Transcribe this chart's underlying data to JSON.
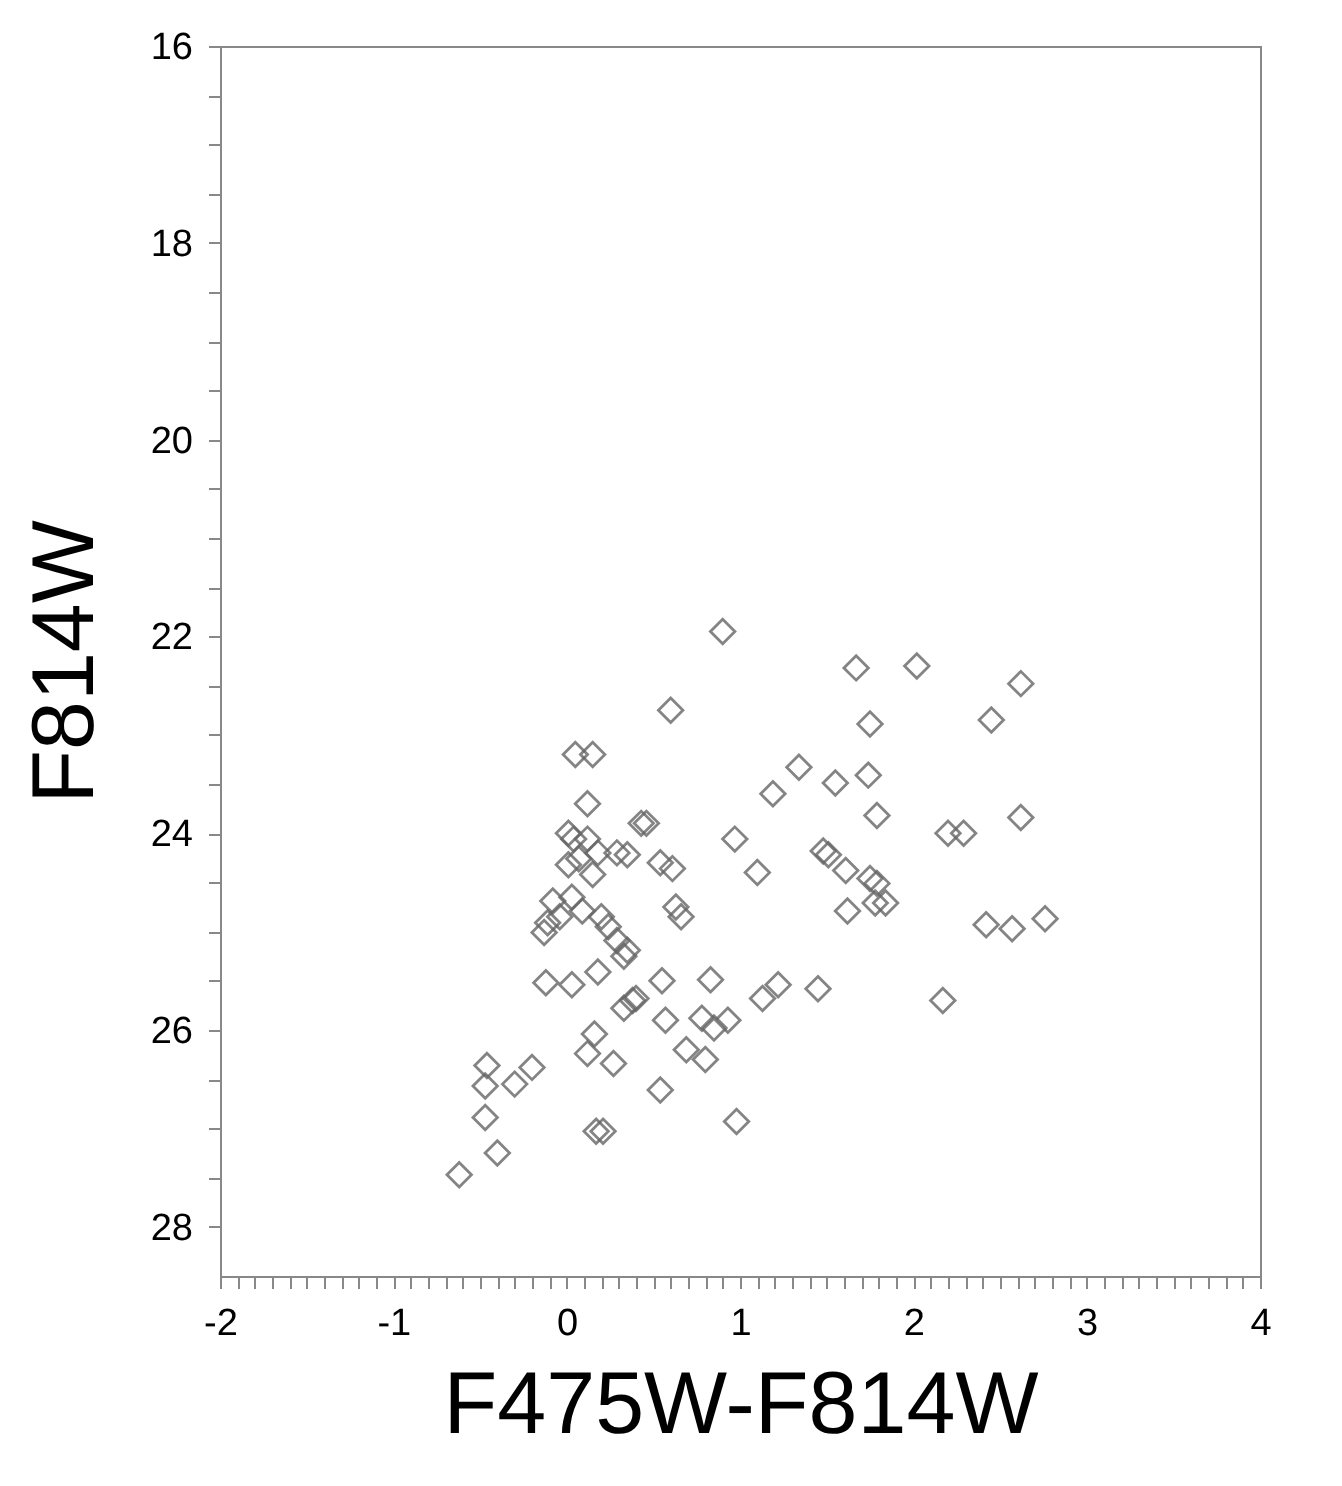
{
  "chart_data": {
    "type": "scatter",
    "xlabel": "F475W-F814W",
    "ylabel": "F814W",
    "marker": "diamond",
    "grid": false,
    "xlim": [
      -2,
      4
    ],
    "ylim": [
      28.5,
      16
    ],
    "xticks": [
      -2,
      {
        "value": -1.9,
        "label": null
      },
      {
        "value": -1.8,
        "label": null
      },
      {
        "value": -1.7,
        "label": null
      },
      {
        "value": -1.6,
        "label": null
      },
      {
        "value": -1.5,
        "label": null
      },
      {
        "value": -1.4,
        "label": null
      },
      {
        "value": -1.3,
        "label": null
      },
      {
        "value": -1.2,
        "label": null
      },
      {
        "value": -1.1,
        "label": null
      },
      -1,
      {
        "value": -0.9,
        "label": null
      },
      {
        "value": -0.8,
        "label": null
      },
      {
        "value": -0.7,
        "label": null
      },
      {
        "value": -0.6,
        "label": null
      },
      {
        "value": -0.5,
        "label": null
      },
      {
        "value": -0.4,
        "label": null
      },
      {
        "value": -0.3,
        "label": null
      },
      {
        "value": -0.2,
        "label": null
      },
      {
        "value": -0.1,
        "label": null
      },
      0,
      {
        "value": 0.1,
        "label": null
      },
      {
        "value": 0.2,
        "label": null
      },
      {
        "value": 0.3,
        "label": null
      },
      {
        "value": 0.4,
        "label": null
      },
      {
        "value": 0.5,
        "label": null
      },
      {
        "value": 0.6,
        "label": null
      },
      {
        "value": 0.7,
        "label": null
      },
      {
        "value": 0.8,
        "label": null
      },
      {
        "value": 0.9,
        "label": null
      },
      1,
      {
        "value": 1.1,
        "label": null
      },
      {
        "value": 1.2,
        "label": null
      },
      {
        "value": 1.3,
        "label": null
      },
      {
        "value": 1.4,
        "label": null
      },
      {
        "value": 1.5,
        "label": null
      },
      {
        "value": 1.6,
        "label": null
      },
      {
        "value": 1.7,
        "label": null
      },
      {
        "value": 1.8,
        "label": null
      },
      {
        "value": 1.9,
        "label": null
      },
      2,
      {
        "value": 2.1,
        "label": null
      },
      {
        "value": 2.2,
        "label": null
      },
      {
        "value": 2.3,
        "label": null
      },
      {
        "value": 2.4,
        "label": null
      },
      {
        "value": 2.5,
        "label": null
      },
      {
        "value": 2.6,
        "label": null
      },
      {
        "value": 2.7,
        "label": null
      },
      {
        "value": 2.8,
        "label": null
      },
      {
        "value": 2.9,
        "label": null
      },
      3,
      {
        "value": 3.1,
        "label": null
      },
      {
        "value": 3.2,
        "label": null
      },
      {
        "value": 3.3,
        "label": null
      },
      {
        "value": 3.4,
        "label": null
      },
      {
        "value": 3.5,
        "label": null
      },
      {
        "value": 3.6,
        "label": null
      },
      {
        "value": 3.7,
        "label": null
      },
      {
        "value": 3.8,
        "label": null
      },
      {
        "value": 3.9,
        "label": null
      },
      4
    ],
    "yticks": [
      16,
      {
        "value": 16.5,
        "label": null
      },
      {
        "value": 17,
        "label": null
      },
      {
        "value": 17.5,
        "label": null
      },
      18,
      {
        "value": 18.5,
        "label": null
      },
      {
        "value": 19,
        "label": null
      },
      {
        "value": 19.5,
        "label": null
      },
      20,
      {
        "value": 20.5,
        "label": null
      },
      {
        "value": 21,
        "label": null
      },
      {
        "value": 21.5,
        "label": null
      },
      22,
      {
        "value": 22.5,
        "label": null
      },
      {
        "value": 23,
        "label": null
      },
      {
        "value": 23.5,
        "label": null
      },
      24,
      {
        "value": 24.5,
        "label": null
      },
      {
        "value": 25,
        "label": null
      },
      {
        "value": 25.5,
        "label": null
      },
      26,
      {
        "value": 26.5,
        "label": null
      },
      {
        "value": 27,
        "label": null
      },
      {
        "value": 27.5,
        "label": null
      },
      28
    ],
    "series": [
      {
        "color": "#666666",
        "x": [
          -0.62,
          -0.4,
          -0.47,
          -0.47,
          -0.46,
          -0.3,
          -0.2,
          0.17,
          0.21,
          0.54,
          0.98,
          0.27,
          0.12,
          0.16,
          -0.12,
          0.03,
          0.18,
          0.33,
          0.35,
          0.38,
          0.4,
          0.33,
          0.55,
          0.57,
          0.69,
          0.78,
          0.83,
          0.8,
          0.85,
          0.93,
          1.13,
          1.22,
          1.45,
          -0.11,
          -0.13,
          -0.04,
          -0.08,
          0.03,
          0.09,
          0.2,
          0.24,
          0.29,
          0.63,
          0.66,
          0.01,
          0.07,
          0.15,
          0.18,
          0.29,
          0.01,
          0.04,
          0.12,
          0.12,
          0.05,
          0.15,
          0.43,
          0.46,
          0.35,
          0.54,
          0.61,
          0.97,
          1.1,
          1.19,
          1.34,
          1.67,
          2.02,
          2.62,
          1.75,
          2.45,
          1.55,
          1.74,
          1.79,
          2.2,
          2.29,
          2.62,
          1.48,
          1.51,
          1.61,
          1.75,
          1.79,
          1.78,
          1.62,
          1.84,
          2.42,
          2.57,
          2.76,
          2.17,
          0.9,
          0.6
        ],
        "values": [
          27.47,
          27.25,
          26.89,
          26.57,
          26.36,
          26.55,
          26.38,
          27.03,
          27.03,
          26.61,
          26.93,
          26.34,
          26.24,
          26.04,
          25.52,
          25.54,
          25.41,
          25.25,
          25.19,
          25.7,
          25.68,
          25.78,
          25.5,
          25.9,
          26.2,
          25.88,
          25.49,
          26.3,
          25.98,
          25.9,
          25.68,
          25.54,
          25.58,
          24.91,
          25.01,
          24.85,
          24.69,
          24.65,
          24.79,
          24.85,
          24.95,
          25.09,
          24.75,
          24.85,
          24.32,
          24.26,
          24.42,
          24.2,
          24.2,
          24.0,
          24.06,
          24.06,
          23.7,
          23.2,
          23.2,
          23.9,
          23.9,
          24.22,
          24.3,
          24.36,
          24.06,
          24.4,
          23.6,
          23.33,
          22.32,
          22.3,
          22.48,
          22.89,
          22.85,
          23.49,
          23.41,
          23.82,
          24.0,
          24.0,
          23.84,
          24.18,
          24.22,
          24.38,
          24.46,
          24.51,
          24.71,
          24.79,
          24.71,
          24.93,
          24.97,
          24.87,
          25.7,
          21.95,
          22.75
        ]
      }
    ]
  }
}
